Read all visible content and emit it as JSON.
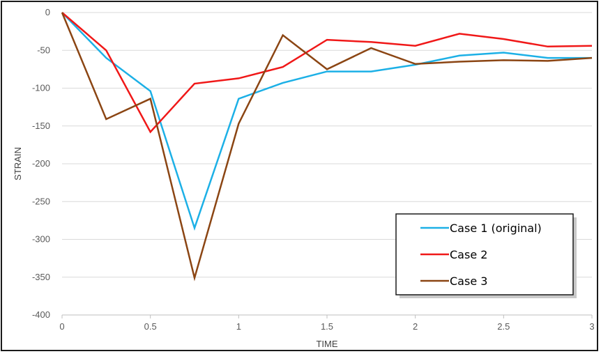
{
  "chart_data": {
    "type": "line",
    "title": "",
    "xlabel": "TIME",
    "ylabel": "STRAIN",
    "xlim": [
      0,
      3
    ],
    "ylim": [
      -400,
      0
    ],
    "x_ticks": [
      "0",
      "0.5",
      "1",
      "1.5",
      "2",
      "2.5",
      "3"
    ],
    "y_ticks": [
      "0",
      "-50",
      "-100",
      "-150",
      "-200",
      "-250",
      "-300",
      "-350",
      "-400"
    ],
    "grid": "horizontal",
    "legend_position": "bottom-right",
    "x": [
      0,
      0.25,
      0.5,
      0.75,
      1,
      1.25,
      1.5,
      1.75,
      2,
      2.25,
      2.5,
      2.75,
      3
    ],
    "series": [
      {
        "name": "Case 1 (original)",
        "color": "#1cb0e6",
        "values": [
          0,
          -60,
          -104,
          -285,
          -114,
          -93,
          -78,
          -78,
          -69,
          -57,
          -53,
          -60,
          -60
        ]
      },
      {
        "name": "Case 2",
        "color": "#f01818",
        "values": [
          0,
          -50,
          -158,
          -94,
          -87,
          -72,
          -36,
          -39,
          -44,
          -28,
          -35,
          -45,
          -44
        ]
      },
      {
        "name": "Case 3",
        "color": "#8b4513",
        "values": [
          0,
          -141,
          -114,
          -351,
          -147,
          -30,
          -75,
          -47,
          -68,
          -65,
          -63,
          -64,
          -60
        ]
      }
    ]
  }
}
